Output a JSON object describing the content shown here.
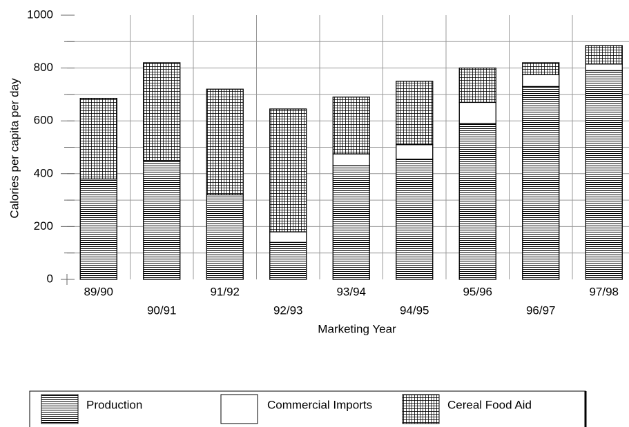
{
  "chart_data": {
    "type": "stacked-bar",
    "y_label": "Calories per capita per day",
    "x_label": "Marketing Year",
    "categories": [
      "89/90",
      "90/91",
      "91/92",
      "92/93",
      "93/94",
      "94/95",
      "95/96",
      "96/97",
      "97/98"
    ],
    "series": [
      {
        "name": "Production",
        "pattern": "hlines",
        "values": [
          380,
          450,
          320,
          140,
          430,
          455,
          590,
          730,
          790
        ]
      },
      {
        "name": "Commercial Imports",
        "pattern": "blank",
        "values": [
          0,
          0,
          0,
          40,
          45,
          55,
          80,
          45,
          25
        ]
      },
      {
        "name": "Cereal Food Aid",
        "pattern": "grid",
        "values": [
          305,
          370,
          400,
          465,
          215,
          240,
          130,
          45,
          70
        ]
      }
    ],
    "ylim": [
      0,
      1000
    ],
    "yticks": [
      0,
      200,
      400,
      600,
      800,
      1000
    ],
    "minor_yticks": [
      100,
      300,
      500,
      700,
      900
    ],
    "grid": true
  }
}
